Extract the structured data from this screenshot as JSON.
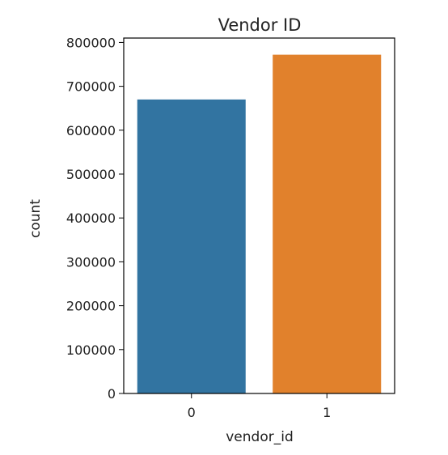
{
  "chart_data": {
    "type": "bar",
    "title": "Vendor ID",
    "xlabel": "vendor_id",
    "ylabel": "count",
    "categories": [
      "0",
      "1"
    ],
    "values": [
      670000,
      772000
    ],
    "ylim": [
      0,
      810000
    ],
    "yticks": [
      0,
      100000,
      200000,
      300000,
      400000,
      500000,
      600000,
      700000,
      800000
    ],
    "ytick_labels": [
      "0",
      "100000",
      "200000",
      "300000",
      "400000",
      "500000",
      "600000",
      "700000",
      "800000"
    ],
    "colors": [
      "#3274a1",
      "#e1812c"
    ],
    "grid": false,
    "legend": "none"
  }
}
